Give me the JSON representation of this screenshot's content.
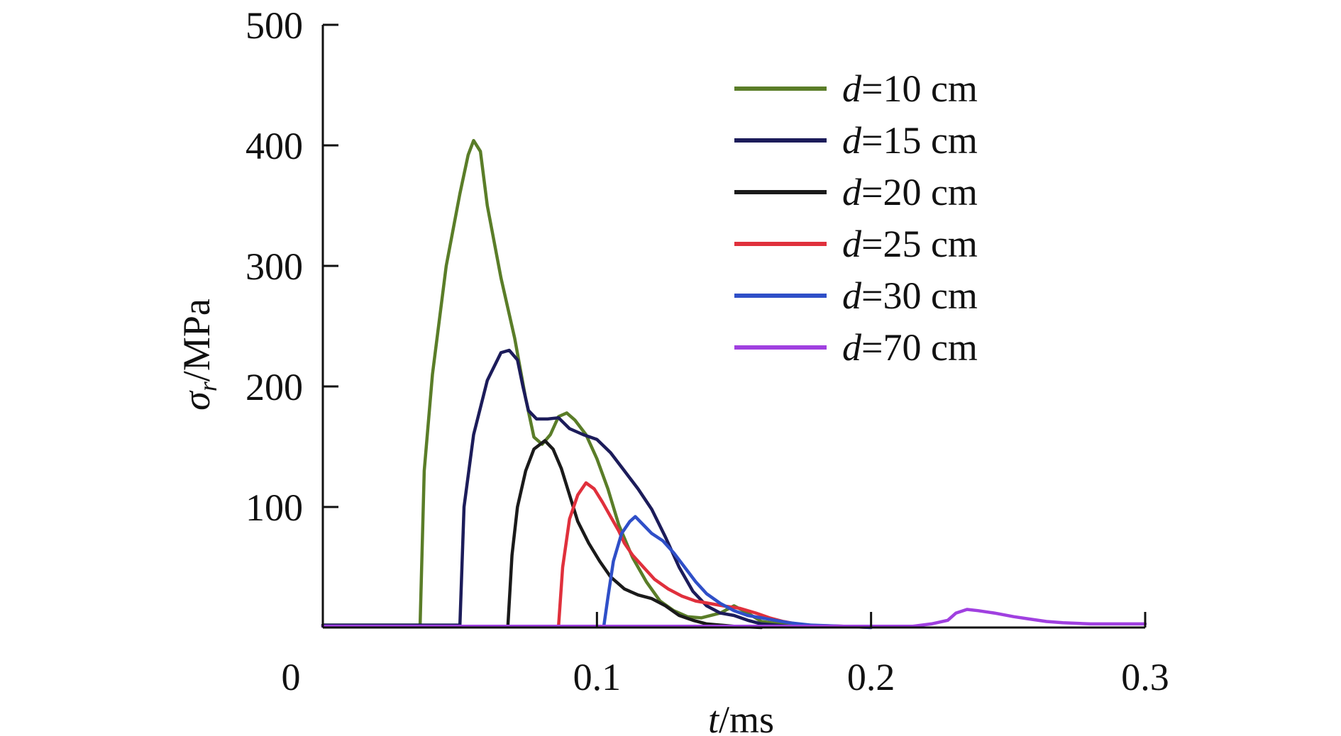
{
  "chart_data": {
    "type": "line",
    "title": "",
    "xlabel_italic": "t",
    "xlabel_rest": "/ms",
    "ylabel_symbol": "σ",
    "ylabel_sub": "r",
    "ylabel_rest": "/MPa",
    "xlim": [
      0,
      0.3
    ],
    "ylim": [
      0,
      500
    ],
    "x_origin_label": "0",
    "x_ticks": [
      {
        "value": 0.1,
        "label": "0.1"
      },
      {
        "value": 0.2,
        "label": "0.2"
      },
      {
        "value": 0.3,
        "label": "0.3"
      }
    ],
    "y_ticks": [
      {
        "value": 100,
        "label": "100"
      },
      {
        "value": 200,
        "label": "200"
      },
      {
        "value": 300,
        "label": "300"
      },
      {
        "value": 400,
        "label": "400"
      },
      {
        "value": 500,
        "label": "500"
      }
    ],
    "grid": false,
    "legend_position": "top-right",
    "series": [
      {
        "name": "=10 cm",
        "legend_prefix": "d",
        "color": "#5a7d28",
        "points": [
          [
            0,
            2
          ],
          [
            0.0355,
            2
          ],
          [
            0.037,
            130
          ],
          [
            0.04,
            210
          ],
          [
            0.045,
            300
          ],
          [
            0.05,
            360
          ],
          [
            0.053,
            392
          ],
          [
            0.055,
            404
          ],
          [
            0.0575,
            395
          ],
          [
            0.06,
            350
          ],
          [
            0.065,
            290
          ],
          [
            0.07,
            240
          ],
          [
            0.074,
            190
          ],
          [
            0.077,
            158
          ],
          [
            0.08,
            152
          ],
          [
            0.083,
            160
          ],
          [
            0.086,
            175
          ],
          [
            0.089,
            178
          ],
          [
            0.092,
            172
          ],
          [
            0.096,
            160
          ],
          [
            0.1,
            140
          ],
          [
            0.104,
            115
          ],
          [
            0.108,
            85
          ],
          [
            0.113,
            58
          ],
          [
            0.118,
            38
          ],
          [
            0.123,
            22
          ],
          [
            0.128,
            14
          ],
          [
            0.133,
            9
          ],
          [
            0.138,
            8
          ],
          [
            0.145,
            12
          ],
          [
            0.15,
            18
          ],
          [
            0.155,
            12
          ],
          [
            0.16,
            5
          ],
          [
            0.17,
            2
          ],
          [
            0.18,
            1
          ]
        ]
      },
      {
        "name": "=15 cm",
        "legend_prefix": "d",
        "color": "#1c1c5a",
        "points": [
          [
            0,
            2
          ],
          [
            0.05,
            2
          ],
          [
            0.0515,
            100
          ],
          [
            0.055,
            160
          ],
          [
            0.06,
            205
          ],
          [
            0.065,
            228
          ],
          [
            0.068,
            230
          ],
          [
            0.071,
            222
          ],
          [
            0.073,
            200
          ],
          [
            0.075,
            180
          ],
          [
            0.078,
            173
          ],
          [
            0.082,
            173
          ],
          [
            0.086,
            174
          ],
          [
            0.09,
            165
          ],
          [
            0.095,
            160
          ],
          [
            0.1,
            156
          ],
          [
            0.105,
            145
          ],
          [
            0.11,
            130
          ],
          [
            0.115,
            115
          ],
          [
            0.12,
            98
          ],
          [
            0.125,
            75
          ],
          [
            0.13,
            50
          ],
          [
            0.135,
            30
          ],
          [
            0.14,
            18
          ],
          [
            0.145,
            12
          ],
          [
            0.15,
            10
          ],
          [
            0.155,
            6
          ],
          [
            0.16,
            3
          ],
          [
            0.17,
            1
          ]
        ]
      },
      {
        "name": "=20 cm",
        "legend_prefix": "d",
        "color": "#1a1a1a",
        "points": [
          [
            0,
            1
          ],
          [
            0.0675,
            1
          ],
          [
            0.069,
            60
          ],
          [
            0.071,
            100
          ],
          [
            0.074,
            130
          ],
          [
            0.077,
            148
          ],
          [
            0.081,
            155
          ],
          [
            0.084,
            148
          ],
          [
            0.087,
            132
          ],
          [
            0.09,
            110
          ],
          [
            0.093,
            88
          ],
          [
            0.097,
            70
          ],
          [
            0.101,
            55
          ],
          [
            0.105,
            42
          ],
          [
            0.11,
            32
          ],
          [
            0.115,
            27
          ],
          [
            0.12,
            24
          ],
          [
            0.125,
            18
          ],
          [
            0.13,
            10
          ],
          [
            0.135,
            6
          ],
          [
            0.14,
            3
          ],
          [
            0.15,
            1
          ],
          [
            0.16,
            0
          ]
        ]
      },
      {
        "name": "=25 cm",
        "legend_prefix": "d",
        "color": "#e0303c",
        "points": [
          [
            0,
            1
          ],
          [
            0.086,
            1
          ],
          [
            0.0875,
            50
          ],
          [
            0.09,
            90
          ],
          [
            0.093,
            110
          ],
          [
            0.096,
            120
          ],
          [
            0.099,
            115
          ],
          [
            0.102,
            104
          ],
          [
            0.105,
            92
          ],
          [
            0.108,
            80
          ],
          [
            0.11,
            70
          ],
          [
            0.113,
            60
          ],
          [
            0.117,
            50
          ],
          [
            0.121,
            40
          ],
          [
            0.126,
            32
          ],
          [
            0.131,
            26
          ],
          [
            0.136,
            22
          ],
          [
            0.141,
            20
          ],
          [
            0.146,
            18
          ],
          [
            0.152,
            16
          ],
          [
            0.158,
            12
          ],
          [
            0.163,
            8
          ],
          [
            0.168,
            5
          ],
          [
            0.175,
            2
          ],
          [
            0.19,
            1
          ],
          [
            0.2,
            0
          ]
        ]
      },
      {
        "name": "=30 cm",
        "legend_prefix": "d",
        "color": "#2f4fc8",
        "points": [
          [
            0,
            1
          ],
          [
            0.1025,
            1
          ],
          [
            0.104,
            25
          ],
          [
            0.106,
            55
          ],
          [
            0.109,
            78
          ],
          [
            0.112,
            88
          ],
          [
            0.114,
            92
          ],
          [
            0.117,
            85
          ],
          [
            0.12,
            78
          ],
          [
            0.124,
            72
          ],
          [
            0.128,
            62
          ],
          [
            0.132,
            50
          ],
          [
            0.136,
            38
          ],
          [
            0.14,
            28
          ],
          [
            0.145,
            20
          ],
          [
            0.15,
            14
          ],
          [
            0.155,
            10
          ],
          [
            0.16,
            8
          ],
          [
            0.165,
            6
          ],
          [
            0.17,
            4
          ],
          [
            0.178,
            2
          ],
          [
            0.19,
            1
          ],
          [
            0.2,
            0
          ]
        ]
      },
      {
        "name": "=70 cm",
        "legend_prefix": "d",
        "color": "#a040e0",
        "points": [
          [
            0,
            1
          ],
          [
            0.215,
            1
          ],
          [
            0.222,
            3
          ],
          [
            0.228,
            6
          ],
          [
            0.231,
            12
          ],
          [
            0.235,
            15
          ],
          [
            0.239,
            14
          ],
          [
            0.245,
            12
          ],
          [
            0.252,
            9
          ],
          [
            0.258,
            7
          ],
          [
            0.264,
            5
          ],
          [
            0.27,
            4
          ],
          [
            0.28,
            3
          ],
          [
            0.29,
            3
          ],
          [
            0.3,
            3
          ]
        ]
      }
    ]
  }
}
